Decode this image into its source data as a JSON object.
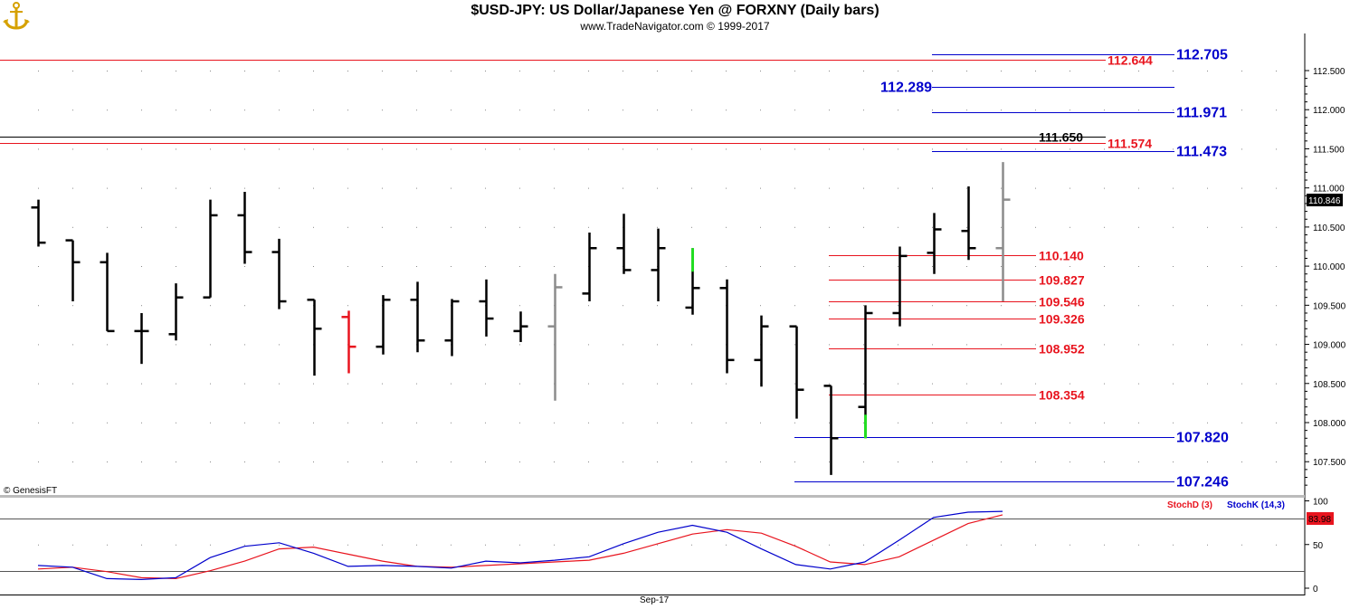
{
  "title": "$USD-JPY:  US Dollar/Japanese Yen @ FORXNY  (Daily bars)",
  "copyright": "www.TradeNavigator.com © 1999-2017",
  "source": "© GenesisFT",
  "colors": {
    "bar_default": "#000000",
    "bar_red": "#e8141e",
    "bar_gray": "#8c8c8c",
    "bar_green": "#22dd22",
    "level_red": "#e8141e",
    "level_blue": "#0000cc",
    "level_black": "#000000",
    "stoch_k": "#0000cc",
    "stoch_d": "#e8141e"
  },
  "chart_data": [
    {
      "type": "ohlc",
      "y_axis_ticks": [
        "107.500",
        "108.000",
        "108.500",
        "109.000",
        "109.500",
        "110.000",
        "110.500",
        "111.000",
        "111.500",
        "112.000",
        "112.500"
      ],
      "ylim": [
        107.2,
        112.9
      ],
      "x_axis_ticks": [
        "Sep-17"
      ],
      "last_price_label": "110.846",
      "bars": [
        {
          "o": 110.75,
          "h": 110.85,
          "l": 110.25,
          "c": 110.3,
          "color": "default"
        },
        {
          "o": 110.33,
          "h": 110.33,
          "l": 109.55,
          "c": 110.05,
          "color": "default"
        },
        {
          "o": 110.05,
          "h": 110.17,
          "l": 109.17,
          "c": 109.17,
          "color": "default"
        },
        {
          "o": 109.17,
          "h": 109.4,
          "l": 108.75,
          "c": 109.17,
          "color": "default"
        },
        {
          "o": 109.13,
          "h": 109.78,
          "l": 109.05,
          "c": 109.6,
          "color": "default"
        },
        {
          "o": 109.6,
          "h": 110.85,
          "l": 109.6,
          "c": 110.65,
          "color": "default"
        },
        {
          "o": 110.65,
          "h": 110.95,
          "l": 110.03,
          "c": 110.18,
          "color": "default"
        },
        {
          "o": 110.18,
          "h": 110.35,
          "l": 109.45,
          "c": 109.55,
          "color": "default"
        },
        {
          "o": 109.57,
          "h": 109.57,
          "l": 108.6,
          "c": 109.2,
          "color": "default"
        },
        {
          "o": 109.35,
          "h": 109.43,
          "l": 108.63,
          "c": 108.97,
          "color": "red"
        },
        {
          "o": 108.97,
          "h": 109.63,
          "l": 108.87,
          "c": 109.57,
          "color": "default"
        },
        {
          "o": 109.57,
          "h": 109.8,
          "l": 108.9,
          "c": 109.05,
          "color": "default"
        },
        {
          "o": 109.05,
          "h": 109.58,
          "l": 108.85,
          "c": 109.55,
          "color": "default"
        },
        {
          "o": 109.55,
          "h": 109.83,
          "l": 109.1,
          "c": 109.33,
          "color": "default"
        },
        {
          "o": 109.17,
          "h": 109.42,
          "l": 109.03,
          "c": 109.23,
          "color": "default"
        },
        {
          "o": 109.23,
          "h": 109.9,
          "l": 108.28,
          "c": 109.73,
          "color": "gray"
        },
        {
          "o": 109.65,
          "h": 110.43,
          "l": 109.55,
          "c": 110.23,
          "color": "default"
        },
        {
          "o": 110.23,
          "h": 110.67,
          "l": 109.9,
          "c": 109.95,
          "color": "default"
        },
        {
          "o": 109.95,
          "h": 110.48,
          "l": 109.55,
          "c": 110.23,
          "color": "default"
        },
        {
          "o": 109.47,
          "h": 110.23,
          "l": 109.38,
          "c": 109.72,
          "color": "green_high"
        },
        {
          "o": 109.72,
          "h": 109.83,
          "l": 108.63,
          "c": 108.8,
          "color": "default"
        },
        {
          "o": 108.8,
          "h": 109.37,
          "l": 108.46,
          "c": 109.23,
          "color": "default"
        },
        {
          "o": 109.23,
          "h": 109.23,
          "l": 108.05,
          "c": 108.42,
          "color": "default"
        },
        {
          "o": 108.47,
          "h": 108.47,
          "l": 107.33,
          "c": 107.8,
          "color": "default"
        },
        {
          "o": 108.2,
          "h": 109.5,
          "l": 107.8,
          "c": 109.4,
          "color": "green_low"
        },
        {
          "o": 109.4,
          "h": 110.25,
          "l": 109.23,
          "c": 110.13,
          "color": "default"
        },
        {
          "o": 110.17,
          "h": 110.68,
          "l": 109.9,
          "c": 110.47,
          "color": "default"
        },
        {
          "o": 110.45,
          "h": 111.02,
          "l": 110.08,
          "c": 110.23,
          "color": "default"
        },
        {
          "o": 110.23,
          "h": 111.33,
          "l": 109.55,
          "c": 110.85,
          "color": "gray"
        }
      ],
      "levels": [
        {
          "value": 112.644,
          "label": "112.644",
          "color": "red"
        },
        {
          "value": 111.574,
          "label": "111.574",
          "color": "red"
        },
        {
          "value": 111.65,
          "label": "111.650",
          "color": "black"
        },
        {
          "value": 112.705,
          "label": "112.705",
          "color": "blue"
        },
        {
          "value": 112.289,
          "label": "112.289",
          "color": "blue"
        },
        {
          "value": 111.971,
          "label": "111.971",
          "color": "blue"
        },
        {
          "value": 111.473,
          "label": "111.473",
          "color": "blue"
        },
        {
          "value": 110.14,
          "label": "110.140",
          "color": "red"
        },
        {
          "value": 109.827,
          "label": "109.827",
          "color": "red"
        },
        {
          "value": 109.546,
          "label": "109.546",
          "color": "red"
        },
        {
          "value": 109.326,
          "label": "109.326",
          "color": "red"
        },
        {
          "value": 108.952,
          "label": "108.952",
          "color": "red"
        },
        {
          "value": 108.354,
          "label": "108.354",
          "color": "red"
        },
        {
          "value": 107.82,
          "label": "107.820",
          "color": "blue"
        },
        {
          "value": 107.246,
          "label": "107.246",
          "color": "blue"
        }
      ]
    },
    {
      "type": "line",
      "ylim": [
        0,
        100
      ],
      "y_axis_ticks": [
        "0",
        "50",
        "100"
      ],
      "reference_lines": [
        80,
        20
      ],
      "last_value_label": "83.98",
      "series": [
        {
          "name": "StochK (14,3)",
          "color": "blue",
          "values": [
            26,
            24,
            11,
            10,
            12,
            35,
            48,
            52,
            40,
            25,
            26,
            25,
            23,
            31,
            29,
            32,
            36,
            51,
            64,
            72,
            64,
            45,
            27,
            22,
            30,
            55,
            81,
            87,
            88
          ]
        },
        {
          "name": "StochD (3)",
          "color": "red",
          "values": [
            22,
            24,
            19,
            12,
            11,
            20,
            31,
            45,
            47,
            39,
            31,
            25,
            24,
            26,
            28,
            30,
            32,
            40,
            51,
            62,
            67,
            63,
            48,
            30,
            27,
            36,
            55,
            74,
            84
          ]
        }
      ]
    }
  ]
}
